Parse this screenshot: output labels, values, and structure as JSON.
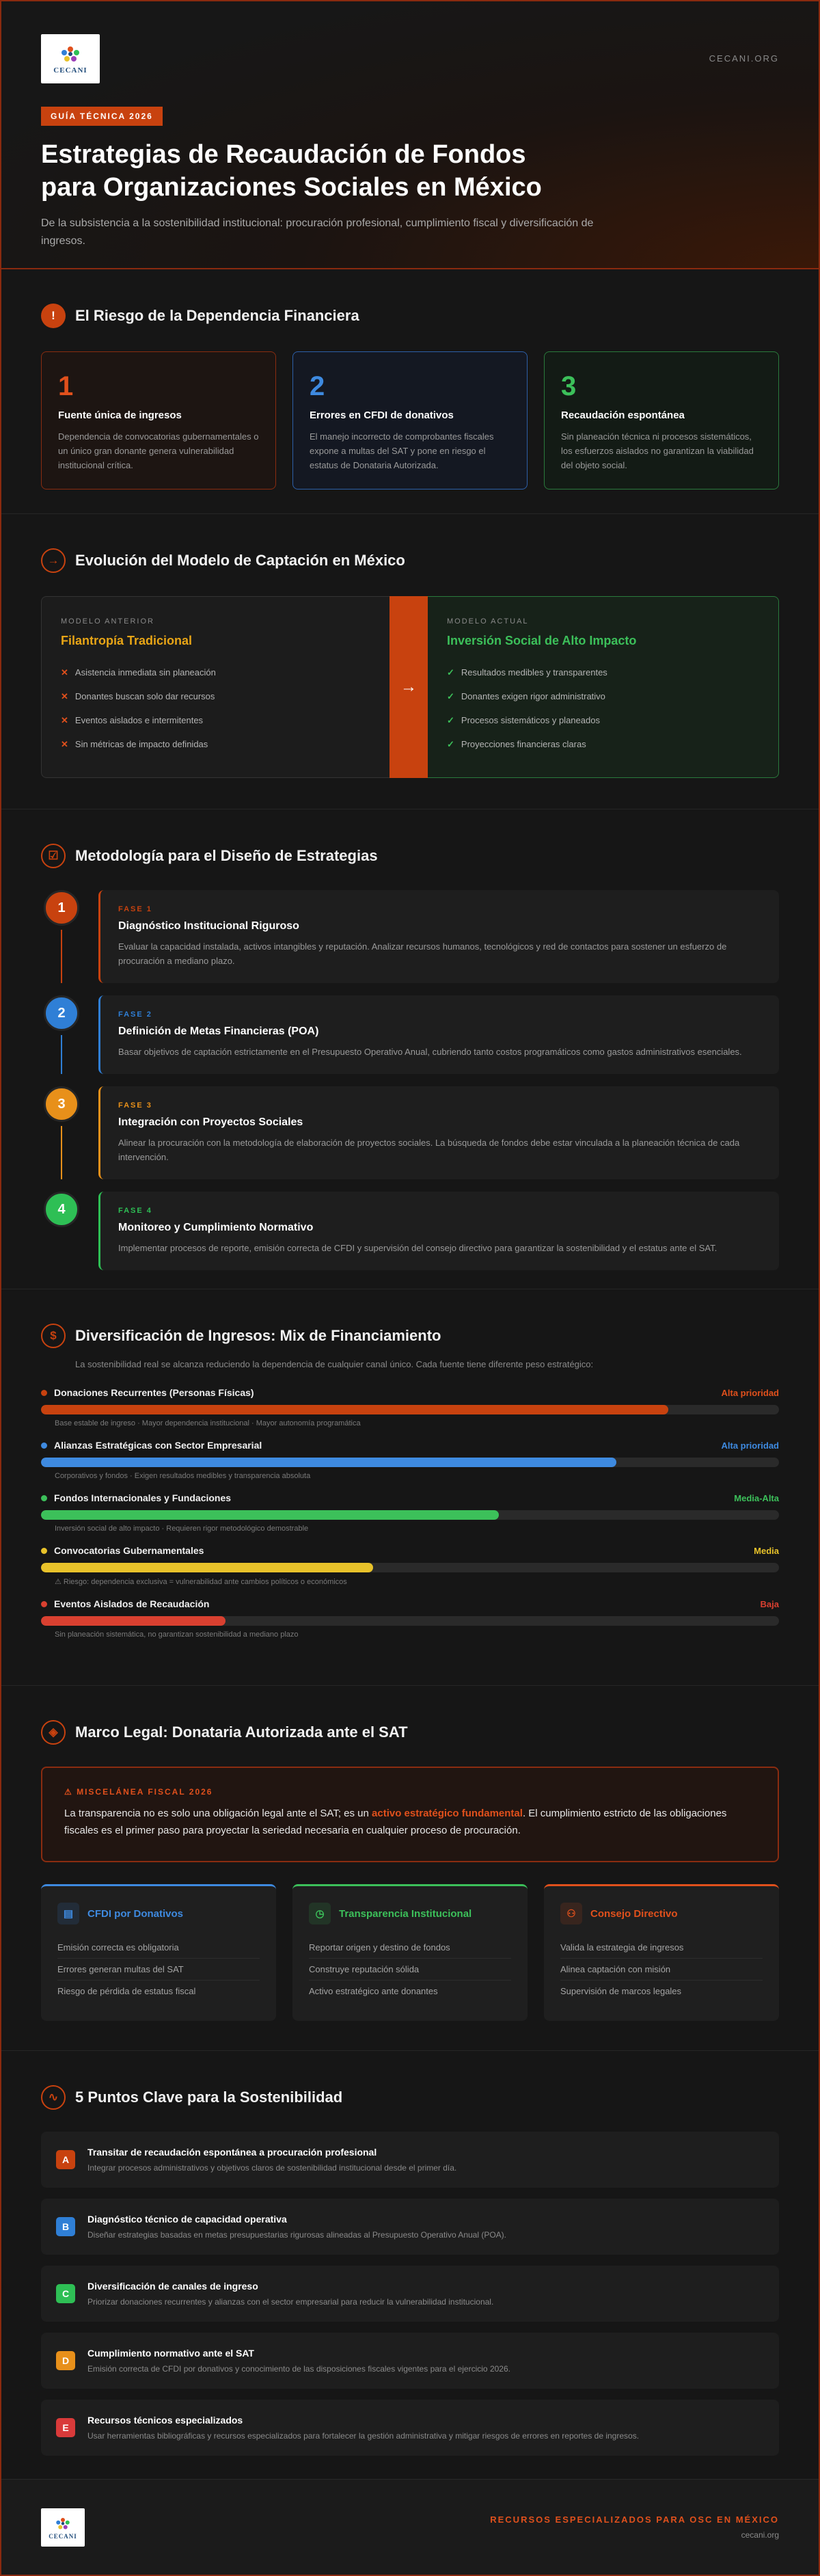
{
  "header": {
    "logo_text": "CECANI",
    "site_url": "CECANI.ORG",
    "badge": "GUÍA TÉCNICA 2026",
    "title": "Estrategias de Recaudación de Fondos para Organizaciones Sociales en México",
    "subtitle": "De la subsistencia a la sostenibilidad institucional: procuración profesional, cumplimiento fiscal y diversificación de ingresos."
  },
  "risk": {
    "title": "El Riesgo de la Dependencia Financiera",
    "icon": "!",
    "cards": [
      {
        "num": "1",
        "title": "Fuente única de ingresos",
        "text": "Dependencia de convocatorias gubernamentales o un único gran donante genera vulnerabilidad institucional crítica."
      },
      {
        "num": "2",
        "title": "Errores en CFDI de donativos",
        "text": "El manejo incorrecto de comprobantes fiscales expone a multas del SAT y pone en riesgo el estatus de Donataria Autorizada."
      },
      {
        "num": "3",
        "title": "Recaudación espontánea",
        "text": "Sin planeación técnica ni procesos sistemáticos, los esfuerzos aislados no garantizan la viabilidad del objeto social."
      }
    ]
  },
  "evolution": {
    "title": "Evolución del Modelo de Captación en México",
    "old": {
      "label": "MODELO ANTERIOR",
      "title": "Filantropía Tradicional",
      "items": [
        "Asistencia inmediata sin planeación",
        "Donantes buscan solo dar recursos",
        "Eventos aislados e intermitentes",
        "Sin métricas de impacto definidas"
      ]
    },
    "arrow": "→",
    "new": {
      "label": "MODELO ACTUAL",
      "title": "Inversión Social de Alto Impacto",
      "items": [
        "Resultados medibles y transparentes",
        "Donantes exigen rigor administrativo",
        "Procesos sistemáticos y planeados",
        "Proyecciones financieras claras"
      ]
    }
  },
  "methodology": {
    "title": "Metodología para el Diseño de Estrategias",
    "phases": [
      {
        "num": "1",
        "tag": "FASE 1",
        "title": "Diagnóstico Institucional Riguroso",
        "text": "Evaluar la capacidad instalada, activos intangibles y reputación. Analizar recursos humanos, tecnológicos y red de contactos para sostener un esfuerzo de procuración a mediano plazo.",
        "color": "#c8420f"
      },
      {
        "num": "2",
        "tag": "FASE 2",
        "title": "Definición de Metas Financieras (POA)",
        "text": "Basar objetivos de captación estrictamente en el Presupuesto Operativo Anual, cubriendo tanto costos programáticos como gastos administrativos esenciales.",
        "color": "#2f7fd6"
      },
      {
        "num": "3",
        "tag": "FASE 3",
        "title": "Integración con Proyectos Sociales",
        "text": "Alinear la procuración con la metodología de elaboración de proyectos sociales. La búsqueda de fondos debe estar vinculada a la planeación técnica de cada intervención.",
        "color": "#e8901a"
      },
      {
        "num": "4",
        "tag": "FASE 4",
        "title": "Monitoreo y Cumplimiento Normativo",
        "text": "Implementar procesos de reporte, emisión correcta de CFDI y supervisión del consejo directivo para garantizar la sostenibilidad y el estatus ante el SAT.",
        "color": "#2ebf55"
      }
    ]
  },
  "mix": {
    "title": "Diversificación de Ingresos: Mix de Financiamiento",
    "intro": "La sostenibilidad real se alcanza reduciendo la dependencia de cualquier canal único. Cada fuente tiene diferente peso estratégico:",
    "rows": [
      {
        "name": "Donaciones Recurrentes (Personas Físicas)",
        "priority": "Alta prioridad",
        "note": "Base estable de ingreso · Mayor dependencia institucional · Mayor autonomía programática",
        "fill": 0.85,
        "color": "#c8420f",
        "prio_color": "#e0501c"
      },
      {
        "name": "Alianzas Estratégicas con Sector Empresarial",
        "priority": "Alta prioridad",
        "note": "Corporativos y fondos · Exigen resultados medibles y transparencia absoluta",
        "fill": 0.78,
        "color": "#3e8ae0",
        "prio_color": "#3e8ae0"
      },
      {
        "name": "Fondos Internacionales y Fundaciones",
        "priority": "Media-Alta",
        "note": "Inversión social de alto impacto · Requieren rigor metodológico demostrable",
        "fill": 0.62,
        "color": "#3cc05a",
        "prio_color": "#3cc05a"
      },
      {
        "name": "Convocatorias Gubernamentales",
        "priority": "Media",
        "note": "⚠ Riesgo: dependencia exclusiva = vulnerabilidad ante cambios políticos o económicos",
        "fill": 0.45,
        "color": "#e8c22a",
        "prio_color": "#e8c22a"
      },
      {
        "name": "Eventos Aislados de Recaudación",
        "priority": "Baja",
        "note": "Sin planeación sistemática, no garantizan sostenibilidad a mediano plazo",
        "fill": 0.25,
        "color": "#d94030",
        "prio_color": "#d94030"
      }
    ]
  },
  "legal": {
    "title": "Marco Legal: Donataria Autorizada ante el SAT",
    "misc_tag": "⚠ MISCELÁNEA FISCAL 2026",
    "misc_text_1": "La transparencia no es solo una obligación legal ante el SAT; es un ",
    "misc_highlight": "activo estratégico fundamental",
    "misc_text_2": ". El cumplimiento estricto de las obligaciones fiscales es el primer paso para proyectar la seriedad necesaria en cualquier proceso de procuración.",
    "cols": [
      {
        "title": "CFDI por Donativos",
        "icon": "▤",
        "color": "#3e8ae0",
        "items": [
          "Emisión correcta es obligatoria",
          "Errores generan multas del SAT",
          "Riesgo de pérdida de estatus fiscal"
        ]
      },
      {
        "title": "Transparencia Institucional",
        "icon": "◷",
        "color": "#3cc05a",
        "items": [
          "Reportar origen y destino de fondos",
          "Construye reputación sólida",
          "Activo estratégico ante donantes"
        ]
      },
      {
        "title": "Consejo Directivo",
        "icon": "⚇",
        "color": "#e0501c",
        "items": [
          "Valida la estrategia de ingresos",
          "Alinea captación con misión",
          "Supervisión de marcos legales"
        ]
      }
    ]
  },
  "keys": {
    "title": "5 Puntos Clave para la Sostenibilidad",
    "items": [
      {
        "letter": "A",
        "color": "#c8420f",
        "title": "Transitar de recaudación espontánea a procuración profesional",
        "text": "Integrar procesos administrativos y objetivos claros de sostenibilidad institucional desde el primer día."
      },
      {
        "letter": "B",
        "color": "#2f7fd6",
        "title": "Diagnóstico técnico de capacidad operativa",
        "text": "Diseñar estrategias basadas en metas presupuestarias rigurosas alineadas al Presupuesto Operativo Anual (POA)."
      },
      {
        "letter": "C",
        "color": "#2ebf55",
        "title": "Diversificación de canales de ingreso",
        "text": "Priorizar donaciones recurrentes y alianzas con el sector empresarial para reducir la vulnerabilidad institucional."
      },
      {
        "letter": "D",
        "color": "#e8901a",
        "title": "Cumplimiento normativo ante el SAT",
        "text": "Emisión correcta de CFDI por donativos y conocimiento de las disposiciones fiscales vigentes para el ejercicio 2026."
      },
      {
        "letter": "E",
        "color": "#d93a3a",
        "title": "Recursos técnicos especializados",
        "text": "Usar herramientas bibliográficas y recursos especializados para fortalecer la gestión administrativa y mitigar riesgos de errores en reportes de ingresos."
      }
    ]
  },
  "footer": {
    "logo_text": "CECANI",
    "tagline": "RECURSOS ESPECIALIZADOS PARA OSC EN MÉXICO",
    "url": "cecani.org"
  }
}
